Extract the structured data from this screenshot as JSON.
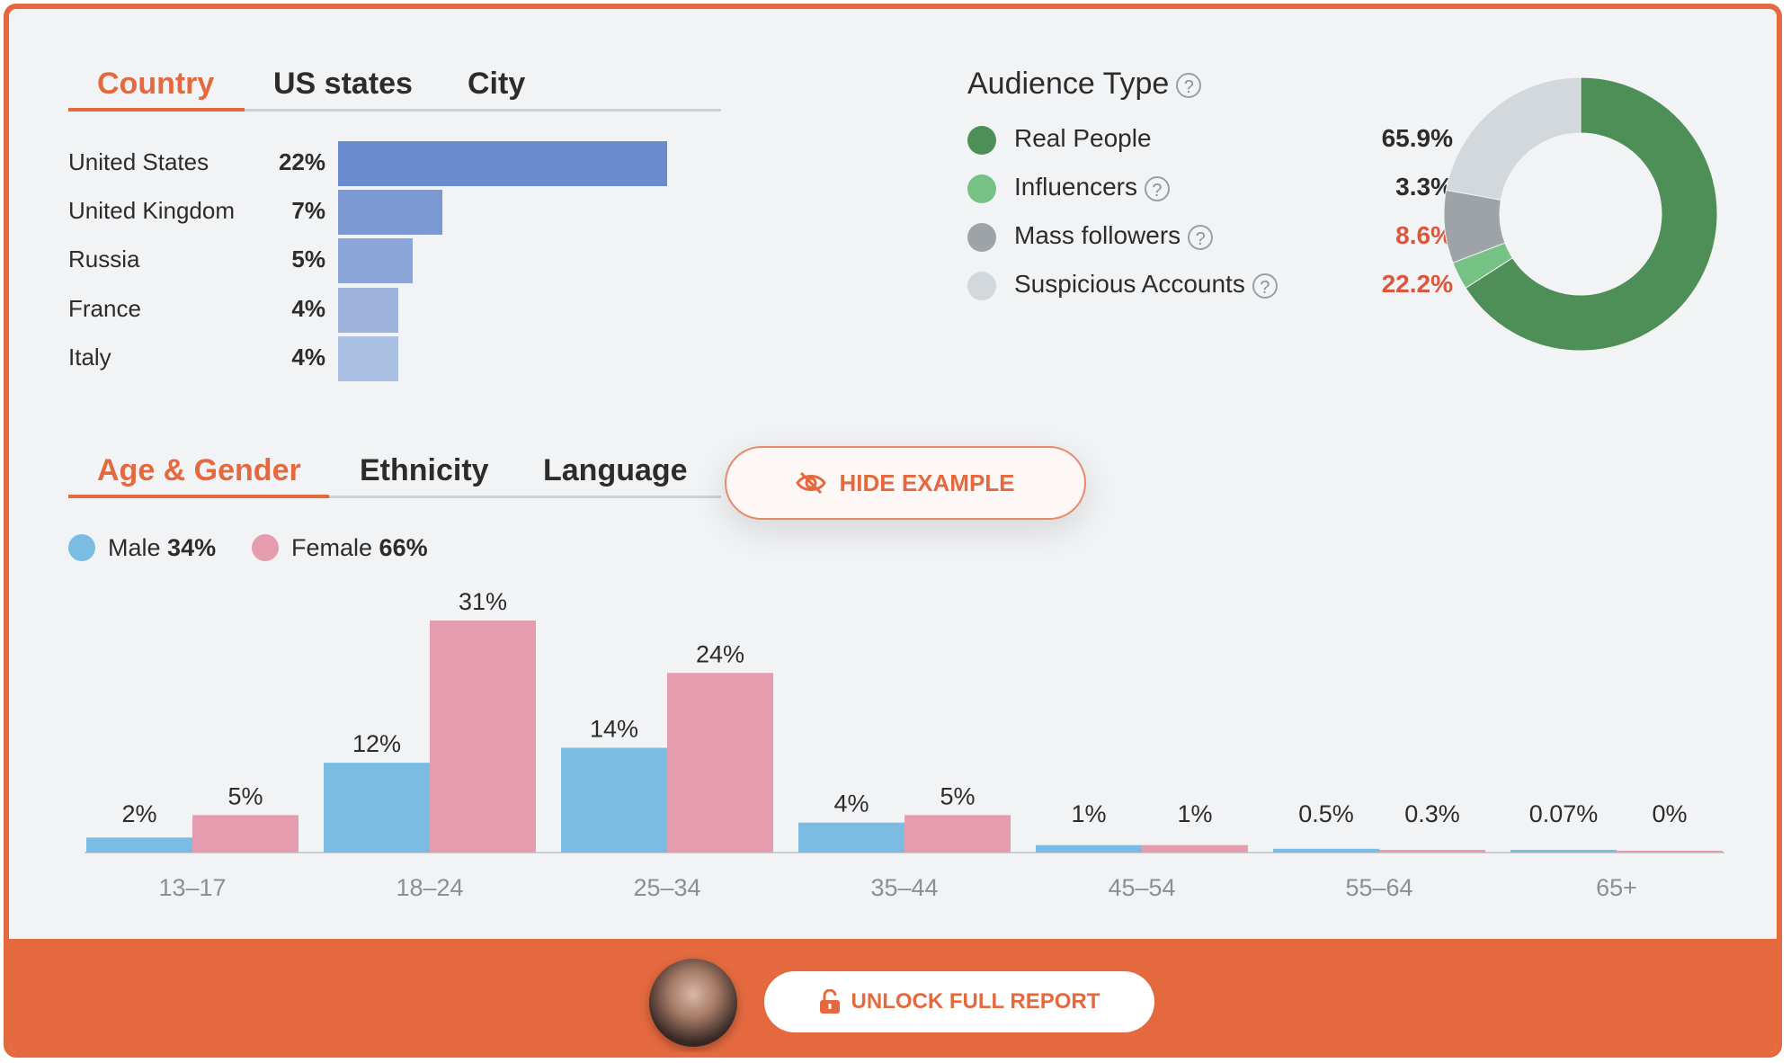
{
  "location": {
    "tabs": [
      "Country",
      "US states",
      "City"
    ],
    "active_tab": "Country"
  },
  "demographics": {
    "tabs": [
      "Age & Gender",
      "Ethnicity",
      "Language"
    ],
    "active_tab": "Age & Gender",
    "legend": {
      "male_label": "Male",
      "male_value": "34%",
      "female_label": "Female",
      "female_value": "66%"
    }
  },
  "audience": {
    "title": "Audience Type",
    "help_glyph": "?",
    "items": [
      {
        "label": "Real People",
        "value": "65.9%",
        "color": "#4e8f57",
        "value_color": "#2c2c2c",
        "help": false
      },
      {
        "label": "Influencers",
        "value": "3.3%",
        "color": "#76c285",
        "value_color": "#2c2c2c",
        "help": true
      },
      {
        "label": "Mass followers",
        "value": "8.6%",
        "color": "#9ea3a8",
        "value_color": "#d9573e",
        "help": true
      },
      {
        "label": "Suspicious Accounts",
        "value": "22.2%",
        "color": "#d3d8dc",
        "value_color": "#d9573e",
        "help": true
      }
    ]
  },
  "hide_example": {
    "label": "HIDE EXAMPLE",
    "icon": "eye-off-icon"
  },
  "unlock": {
    "label": "UNLOCK FULL REPORT",
    "icon": "unlock-icon"
  },
  "colors": {
    "accent": "#e4693f",
    "male": "#7bbde2",
    "female": "#e69caf",
    "country_bars": [
      "#6a8ccf",
      "#7b98d3",
      "#8ba5d8",
      "#9db3dd",
      "#abc1e4"
    ]
  },
  "chart_data": [
    {
      "type": "bar",
      "title": "",
      "orientation": "horizontal",
      "categories": [
        "United States",
        "United Kingdom",
        "Russia",
        "France",
        "Italy"
      ],
      "values": [
        22,
        7,
        5,
        4,
        4
      ],
      "value_labels": [
        "22%",
        "7%",
        "5%",
        "4%",
        "4%"
      ],
      "unit": "%"
    },
    {
      "type": "pie",
      "title": "Audience Type",
      "donut": true,
      "labels": [
        "Real People",
        "Influencers",
        "Mass followers",
        "Suspicious Accounts"
      ],
      "values": [
        65.9,
        3.3,
        8.6,
        22.2
      ],
      "colors": [
        "#4e8f57",
        "#76c285",
        "#9ea3a8",
        "#d3d8dc"
      ]
    },
    {
      "type": "bar",
      "title": "",
      "categories": [
        "13–17",
        "18–24",
        "25–34",
        "35–44",
        "45–54",
        "55–64",
        "65+"
      ],
      "series": [
        {
          "name": "Male",
          "values": [
            2,
            12,
            14,
            4,
            1,
            0.5,
            0.07
          ],
          "labels": [
            "2%",
            "12%",
            "14%",
            "4%",
            "1%",
            "0.5%",
            "0.07%"
          ],
          "color": "#7bbde2"
        },
        {
          "name": "Female",
          "values": [
            5,
            31,
            24,
            5,
            1,
            0.3,
            0
          ],
          "labels": [
            "5%",
            "31%",
            "24%",
            "5%",
            "1%",
            "0.3%",
            "0%"
          ],
          "color": "#e69caf"
        }
      ],
      "ylim": [
        0,
        31
      ],
      "grid": false,
      "legend": "top-left"
    }
  ]
}
